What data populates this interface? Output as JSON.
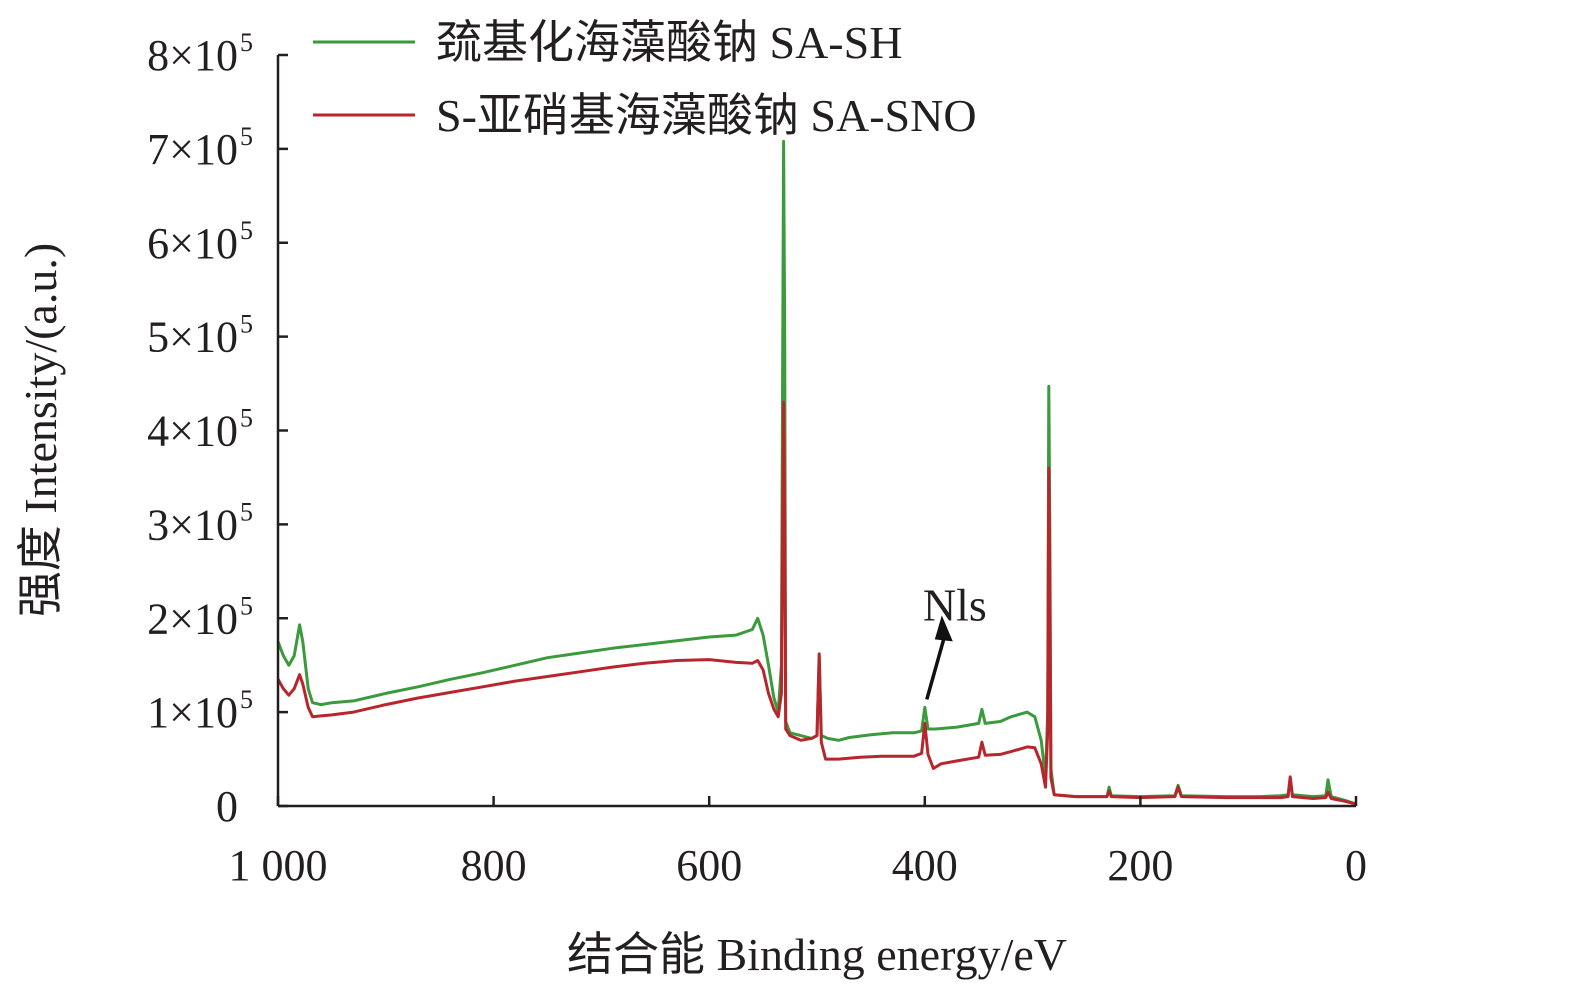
{
  "chart_data": {
    "type": "line",
    "title": "",
    "xlabel": "结合能 Binding energy/eV",
    "ylabel": "强度 Intensity/(a.u.)",
    "xlim": [
      1000,
      0
    ],
    "ylim": [
      0,
      800000
    ],
    "x_ticks": [
      1000,
      800,
      600,
      400,
      200,
      0
    ],
    "x_tick_labels": [
      "1 000",
      "800",
      "600",
      "400",
      "200",
      "0"
    ],
    "y_ticks": [
      {
        "value": 0,
        "mantissa": "0",
        "exponent": ""
      },
      {
        "value": 100000,
        "mantissa": "1×10",
        "exponent": "5"
      },
      {
        "value": 200000,
        "mantissa": "2×10",
        "exponent": "5"
      },
      {
        "value": 300000,
        "mantissa": "3×10",
        "exponent": "5"
      },
      {
        "value": 400000,
        "mantissa": "4×10",
        "exponent": "5"
      },
      {
        "value": 500000,
        "mantissa": "5×10",
        "exponent": "5"
      },
      {
        "value": 600000,
        "mantissa": "6×10",
        "exponent": "5"
      },
      {
        "value": 700000,
        "mantissa": "7×10",
        "exponent": "5"
      },
      {
        "value": 800000,
        "mantissa": "8×10",
        "exponent": "5"
      }
    ],
    "legend_position": "top",
    "grid": false,
    "annotations": [
      {
        "text": "Nls",
        "x": 400,
        "y": 105000,
        "arrow": true
      }
    ],
    "series": [
      {
        "name": "巯基化海藻酸钠 SA-SH",
        "color": "#3a9a3c",
        "points": [
          [
            1000,
            175000
          ],
          [
            995,
            160000
          ],
          [
            990,
            150000
          ],
          [
            985,
            160000
          ],
          [
            980,
            193000
          ],
          [
            977,
            175000
          ],
          [
            972,
            125000
          ],
          [
            968,
            110000
          ],
          [
            960,
            108000
          ],
          [
            950,
            110000
          ],
          [
            930,
            112000
          ],
          [
            900,
            120000
          ],
          [
            870,
            127000
          ],
          [
            840,
            135000
          ],
          [
            810,
            142000
          ],
          [
            780,
            150000
          ],
          [
            750,
            158000
          ],
          [
            720,
            163000
          ],
          [
            690,
            168000
          ],
          [
            660,
            172000
          ],
          [
            630,
            176000
          ],
          [
            600,
            180000
          ],
          [
            575,
            182000
          ],
          [
            560,
            188000
          ],
          [
            555,
            200000
          ],
          [
            550,
            182000
          ],
          [
            545,
            150000
          ],
          [
            540,
            115000
          ],
          [
            536,
            100000
          ],
          [
            533,
            150000
          ],
          [
            531,
            708000
          ],
          [
            530,
            500000
          ],
          [
            529,
            90000
          ],
          [
            525,
            78000
          ],
          [
            515,
            75000
          ],
          [
            505,
            72000
          ],
          [
            500,
            75000
          ],
          [
            498,
            160000
          ],
          [
            496,
            75000
          ],
          [
            490,
            72000
          ],
          [
            480,
            70000
          ],
          [
            470,
            73000
          ],
          [
            450,
            76000
          ],
          [
            430,
            78000
          ],
          [
            410,
            78000
          ],
          [
            403,
            80000
          ],
          [
            400,
            105000
          ],
          [
            397,
            82000
          ],
          [
            390,
            82000
          ],
          [
            370,
            84000
          ],
          [
            350,
            88000
          ],
          [
            347,
            103000
          ],
          [
            344,
            88000
          ],
          [
            330,
            90000
          ],
          [
            320,
            95000
          ],
          [
            305,
            100000
          ],
          [
            298,
            95000
          ],
          [
            292,
            70000
          ],
          [
            288,
            30000
          ],
          [
            286,
            100000
          ],
          [
            285,
            447000
          ],
          [
            284,
            300000
          ],
          [
            283,
            40000
          ],
          [
            280,
            12000
          ],
          [
            260,
            10000
          ],
          [
            231,
            10000
          ],
          [
            229,
            20000
          ],
          [
            227,
            11000
          ],
          [
            200,
            10000
          ],
          [
            168,
            11000
          ],
          [
            165,
            22000
          ],
          [
            162,
            11000
          ],
          [
            120,
            10000
          ],
          [
            90,
            10000
          ],
          [
            70,
            11000
          ],
          [
            63,
            12000
          ],
          [
            61,
            30000
          ],
          [
            59,
            12000
          ],
          [
            40,
            10000
          ],
          [
            28,
            11000
          ],
          [
            26,
            28000
          ],
          [
            23,
            10000
          ],
          [
            10,
            6000
          ],
          [
            0,
            2000
          ]
        ]
      },
      {
        "name": "S-亚硝基海藻酸钠 SA-SNO",
        "color": "#b8262d",
        "points": [
          [
            1000,
            135000
          ],
          [
            995,
            125000
          ],
          [
            990,
            118000
          ],
          [
            985,
            125000
          ],
          [
            980,
            140000
          ],
          [
            977,
            130000
          ],
          [
            972,
            105000
          ],
          [
            968,
            95000
          ],
          [
            960,
            96000
          ],
          [
            950,
            97000
          ],
          [
            930,
            100000
          ],
          [
            900,
            108000
          ],
          [
            870,
            115000
          ],
          [
            840,
            121000
          ],
          [
            810,
            127000
          ],
          [
            780,
            133000
          ],
          [
            750,
            138000
          ],
          [
            720,
            143000
          ],
          [
            690,
            148000
          ],
          [
            660,
            152000
          ],
          [
            630,
            155000
          ],
          [
            600,
            156000
          ],
          [
            575,
            153000
          ],
          [
            560,
            152000
          ],
          [
            555,
            155000
          ],
          [
            550,
            145000
          ],
          [
            545,
            120000
          ],
          [
            540,
            103000
          ],
          [
            536,
            95000
          ],
          [
            533,
            120000
          ],
          [
            531,
            430000
          ],
          [
            530,
            300000
          ],
          [
            529,
            82000
          ],
          [
            525,
            75000
          ],
          [
            515,
            70000
          ],
          [
            505,
            72000
          ],
          [
            500,
            75000
          ],
          [
            498,
            162000
          ],
          [
            496,
            68000
          ],
          [
            492,
            50000
          ],
          [
            480,
            50000
          ],
          [
            460,
            52000
          ],
          [
            440,
            53000
          ],
          [
            420,
            53000
          ],
          [
            410,
            53000
          ],
          [
            403,
            56000
          ],
          [
            400,
            88000
          ],
          [
            397,
            55000
          ],
          [
            392,
            40000
          ],
          [
            385,
            45000
          ],
          [
            370,
            48000
          ],
          [
            350,
            52000
          ],
          [
            347,
            68000
          ],
          [
            344,
            54000
          ],
          [
            330,
            55000
          ],
          [
            320,
            58000
          ],
          [
            305,
            63000
          ],
          [
            298,
            62000
          ],
          [
            292,
            45000
          ],
          [
            288,
            20000
          ],
          [
            286,
            80000
          ],
          [
            285,
            360000
          ],
          [
            284,
            250000
          ],
          [
            283,
            30000
          ],
          [
            280,
            12000
          ],
          [
            260,
            10000
          ],
          [
            231,
            10000
          ],
          [
            229,
            16000
          ],
          [
            227,
            10000
          ],
          [
            200,
            9000
          ],
          [
            168,
            10000
          ],
          [
            165,
            20000
          ],
          [
            162,
            10000
          ],
          [
            120,
            9000
          ],
          [
            90,
            9000
          ],
          [
            70,
            9000
          ],
          [
            63,
            10000
          ],
          [
            61,
            31000
          ],
          [
            59,
            10000
          ],
          [
            40,
            8000
          ],
          [
            28,
            9000
          ],
          [
            26,
            15000
          ],
          [
            23,
            8000
          ],
          [
            10,
            5000
          ],
          [
            0,
            2000
          ]
        ]
      }
    ]
  }
}
